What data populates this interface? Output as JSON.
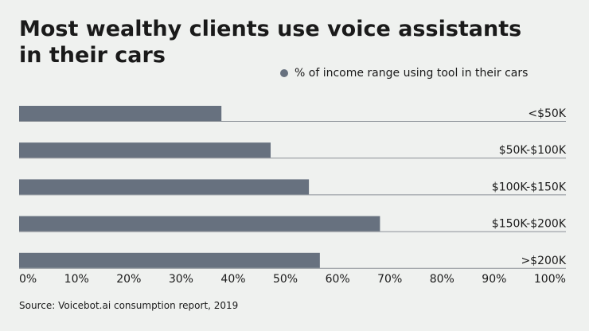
{
  "chart_data": {
    "type": "hbar",
    "title": "Most wealthy clients use voice assistants in their cars",
    "categories": [
      "<$50K",
      "$50K-$100K",
      "$100K-$150K",
      "$150K-$200K",
      ">$200K"
    ],
    "series": [
      {
        "name": "% of income range using tool in their cars",
        "color": "#67717f",
        "values": [
          37,
          46,
          53,
          66,
          55
        ]
      }
    ],
    "xlim": [
      0,
      100
    ],
    "xticks": [
      {
        "value": 0,
        "label": "0%"
      },
      {
        "value": 10,
        "label": "10%"
      },
      {
        "value": 20,
        "label": "20%"
      },
      {
        "value": 30,
        "label": "30%"
      },
      {
        "value": 40,
        "label": "40%"
      },
      {
        "value": 50,
        "label": "50%"
      },
      {
        "value": 60,
        "label": "60%"
      },
      {
        "value": 70,
        "label": "70%"
      },
      {
        "value": 80,
        "label": "80%"
      },
      {
        "value": 90,
        "label": "90%"
      },
      {
        "value": 100,
        "label": "100%"
      }
    ],
    "legend": "top-right",
    "source": "Source: Voicebot.ai consumption report, 2019"
  }
}
